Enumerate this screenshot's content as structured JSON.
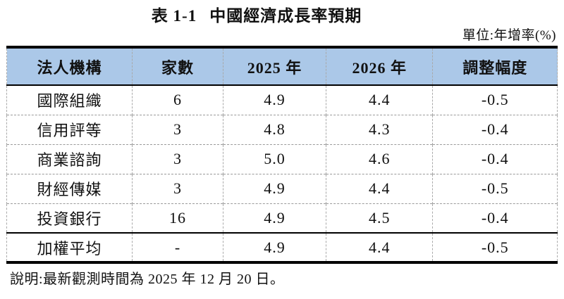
{
  "title": {
    "prefix": "表 1-1",
    "text": "中國經濟成長率預期"
  },
  "unit_label": "單位:年增率(%)",
  "table": {
    "columns": [
      "法人機構",
      "家數",
      "2025 年",
      "2026 年",
      "調整幅度"
    ],
    "rows": [
      {
        "institution": "國際組織",
        "count": "6",
        "y2025": "4.9",
        "y2026": "4.4",
        "adjustment": "-0.5"
      },
      {
        "institution": "信用評等",
        "count": "3",
        "y2025": "4.8",
        "y2026": "4.3",
        "adjustment": "-0.4"
      },
      {
        "institution": "商業諮詢",
        "count": "3",
        "y2025": "5.0",
        "y2026": "4.6",
        "adjustment": "-0.4"
      },
      {
        "institution": "財經傳媒",
        "count": "3",
        "y2025": "4.9",
        "y2026": "4.4",
        "adjustment": "-0.5"
      },
      {
        "institution": "投資銀行",
        "count": "16",
        "y2025": "4.9",
        "y2026": "4.5",
        "adjustment": "-0.4"
      },
      {
        "institution": "加權平均",
        "count": "-",
        "y2025": "4.9",
        "y2026": "4.4",
        "adjustment": "-0.5"
      }
    ]
  },
  "note": "說明:最新觀測時間為 2025 年 12 月 20 日。",
  "colors": {
    "header_background": "#abc8e8",
    "border_solid": "#000000",
    "border_dashed": "#a9a9a9"
  }
}
